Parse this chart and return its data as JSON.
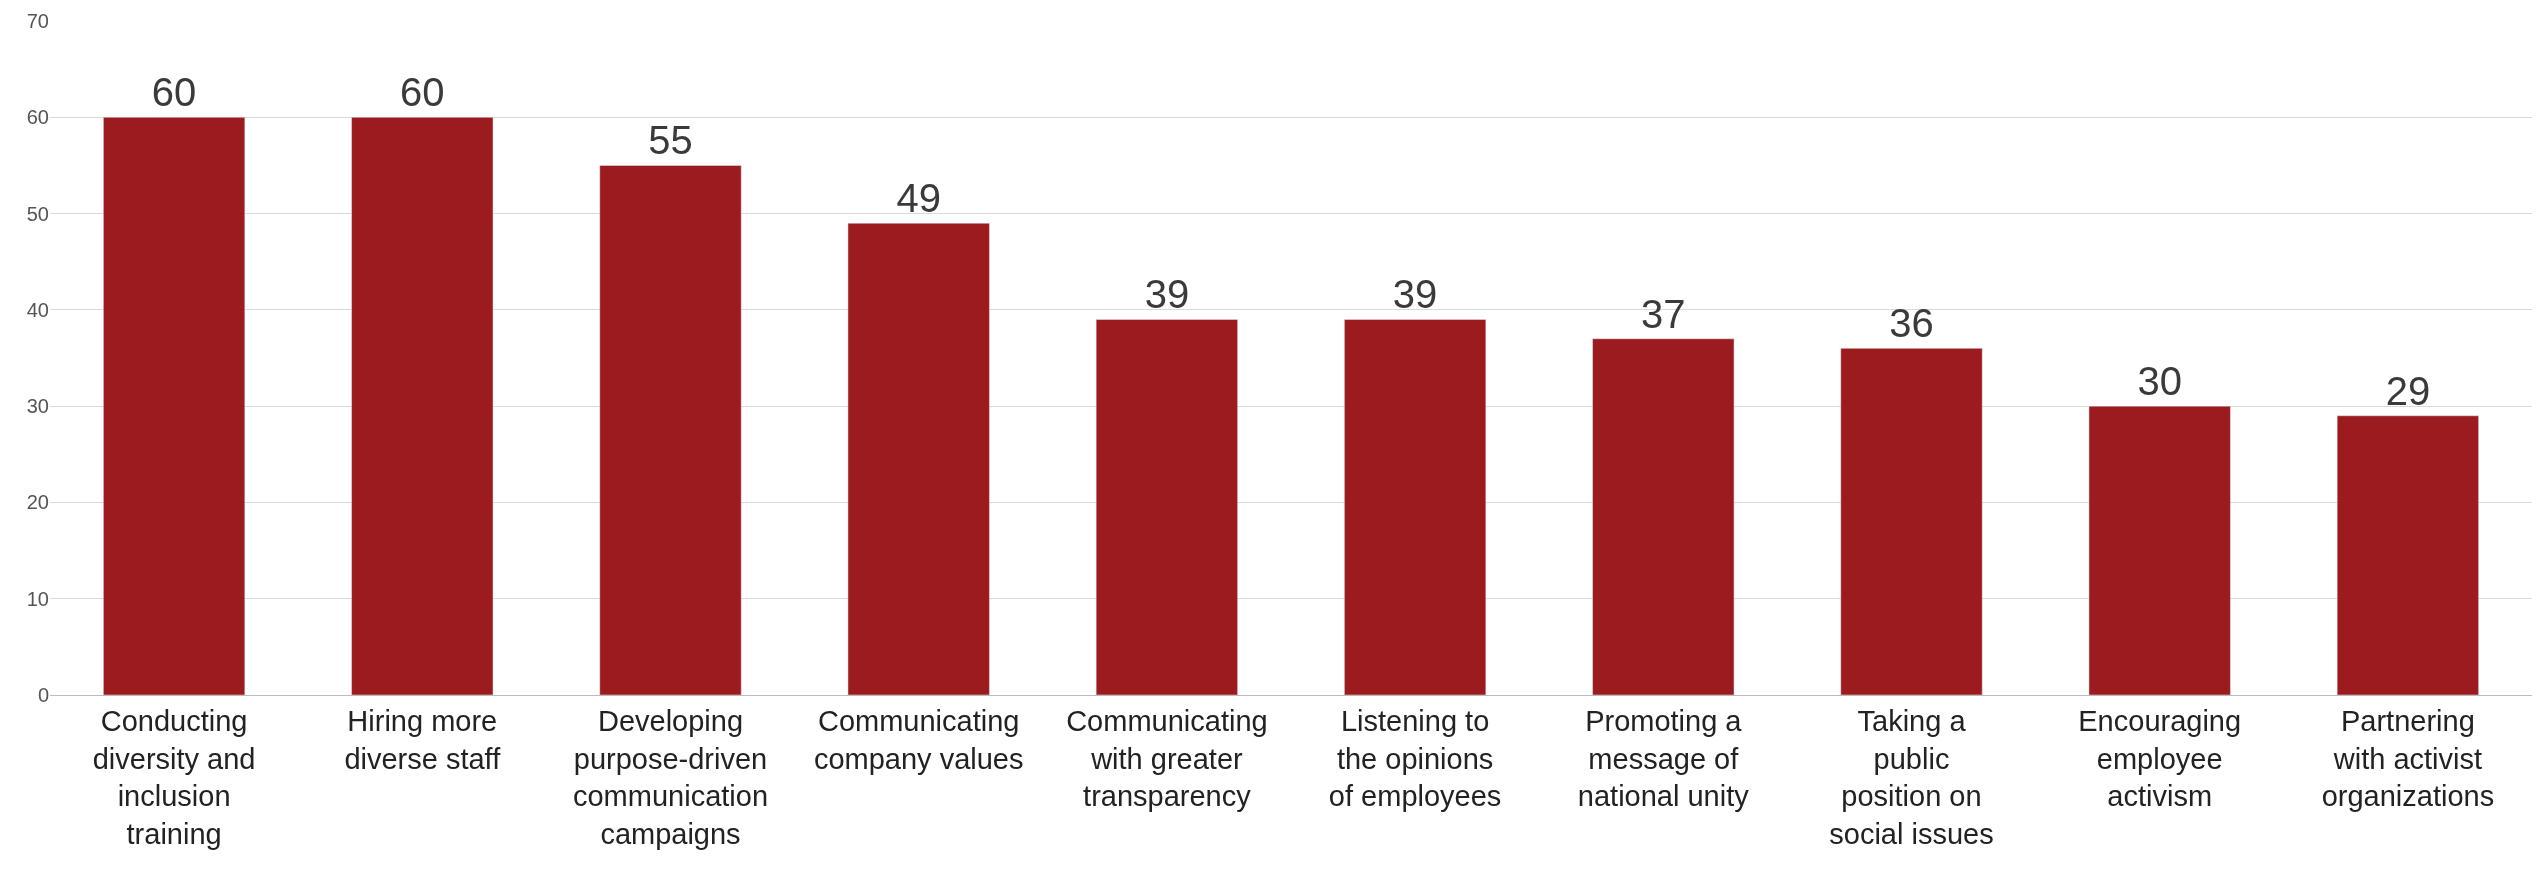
{
  "chart_data": {
    "type": "bar",
    "categories": [
      "Conducting diversity and inclusion training",
      "Hiring more diverse staff",
      "Developing purpose-driven communication campaigns",
      "Communicating company values",
      "Communicating with greater transparency",
      "Listening to the opinions of employees",
      "Promoting a message of national unity",
      "Taking a public position on social issues",
      "Encouraging employee activism",
      "Partnering with activist organizations"
    ],
    "values": [
      60,
      60,
      55,
      49,
      39,
      39,
      37,
      36,
      30,
      29
    ],
    "color": "#9b1b1f",
    "data_labels": true,
    "ylim": [
      0,
      70
    ],
    "yticks": [
      0,
      10,
      20,
      30,
      40,
      50,
      60,
      70
    ],
    "grid": "y",
    "legend": false
  }
}
